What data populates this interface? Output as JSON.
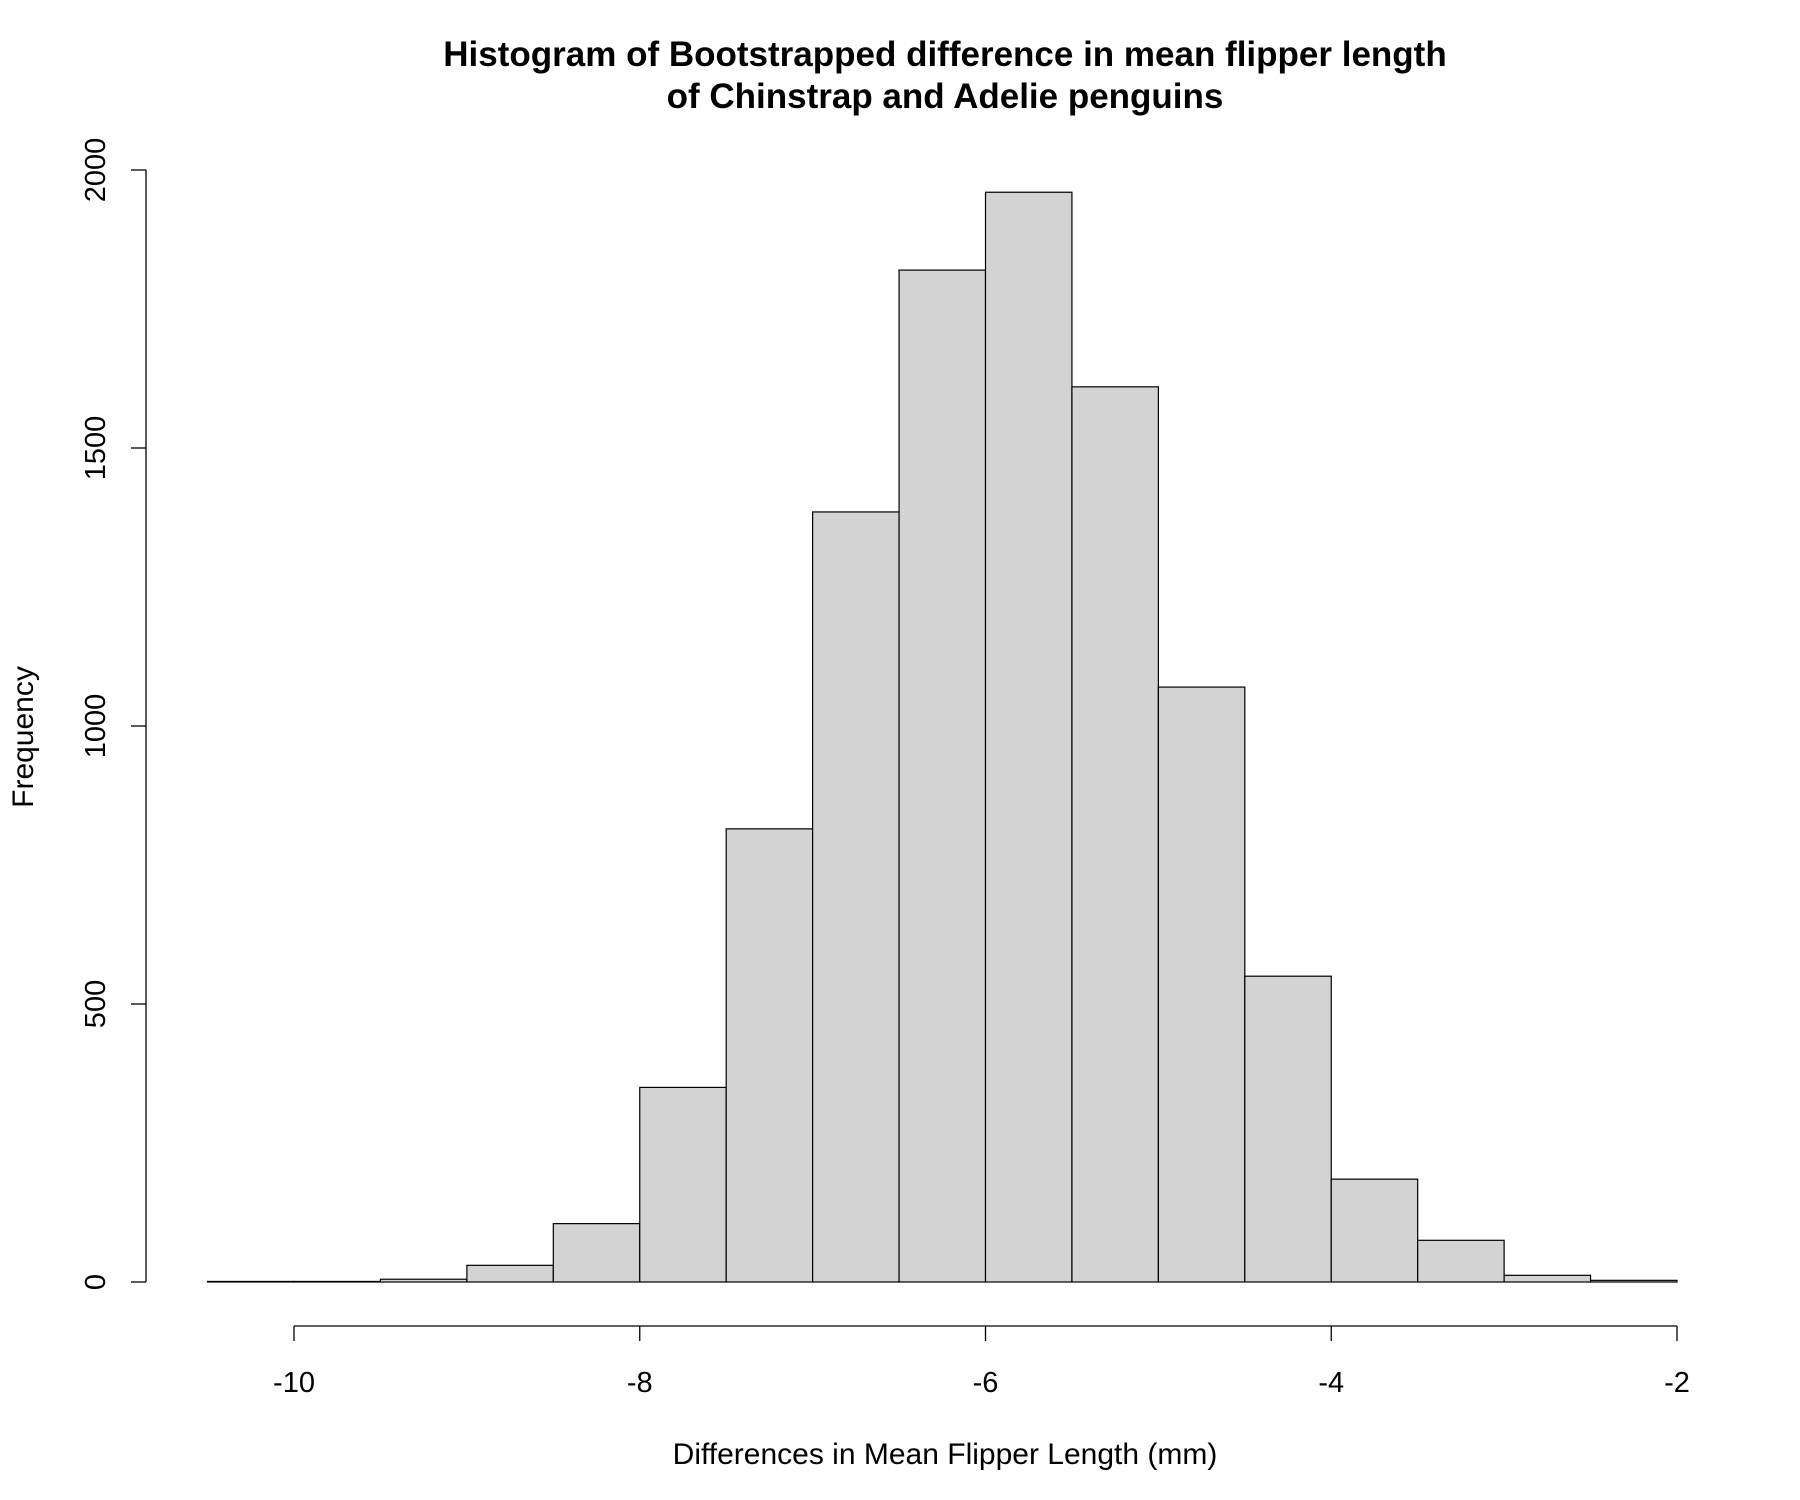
{
  "chart_data": {
    "type": "bar",
    "title_lines": [
      "Histogram of Bootstrapped difference in mean flipper length",
      "of Chinstrap and Adelie penguins"
    ],
    "xlabel": "Differences in Mean Flipper Length (mm)",
    "ylabel": "Frequency",
    "bin_edges": [
      -10.5,
      -10,
      -9.5,
      -9,
      -8.5,
      -8,
      -7.5,
      -7,
      -6.5,
      -6,
      -5.5,
      -5,
      -4.5,
      -4,
      -3.5,
      -3,
      -2.5,
      -2
    ],
    "values": [
      1,
      1,
      5,
      30,
      105,
      350,
      815,
      1385,
      1820,
      1960,
      1610,
      1070,
      550,
      185,
      75,
      12,
      3
    ],
    "x_ticks": [
      -10,
      -8,
      -6,
      -4,
      -2
    ],
    "x_tick_labels": [
      "-10",
      "-8",
      "-6",
      "-4",
      "-2"
    ],
    "y_ticks": [
      0,
      500,
      1000,
      1500,
      2000
    ],
    "y_tick_labels": [
      "0",
      "500",
      "1000",
      "1500",
      "2000"
    ],
    "xlim": [
      -10.5,
      -2
    ],
    "ylim": [
      0,
      2000
    ],
    "grid": false,
    "bar_fill": "#d3d3d3",
    "bar_stroke": "#000000"
  }
}
